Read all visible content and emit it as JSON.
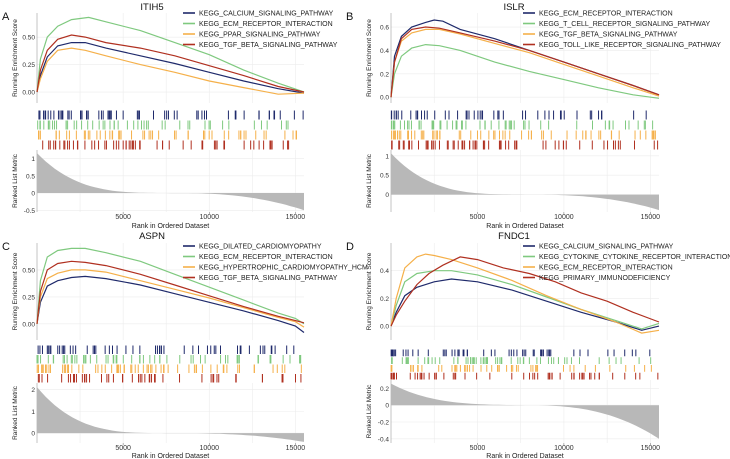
{
  "figure": {
    "description_panels": [
      "A",
      "B",
      "C",
      "D"
    ],
    "series_colors": [
      "#1f2a6b",
      "#7fc97f",
      "#f5b04a",
      "#b03020"
    ]
  },
  "chart_data": [
    {
      "type": "line",
      "panel_letter": "A",
      "title": "ITIH5",
      "xlabel": "Rank in Ordered Dataset",
      "ylabel_top": "Running Enrichment Score",
      "ylabel_bottom": "Ranked List Metric",
      "xlim": [
        0,
        15500
      ],
      "ylim_top": [
        -0.1,
        0.72
      ],
      "ylim_bottom": [
        -0.55,
        1.25
      ],
      "x_ticks": [
        5000,
        10000,
        15000
      ],
      "y_ticks_top": [
        0.0,
        0.25,
        0.5
      ],
      "y_ticks_bottom": [
        -0.5,
        0.0,
        0.5,
        1.0
      ],
      "series": [
        {
          "name": "KEGG_CALCIUM_SIGNALING_PATHWAY",
          "color": "#1f2a6b",
          "x": [
            0,
            200,
            600,
            1200,
            2000,
            2800,
            4000,
            6000,
            8000,
            10000,
            12000,
            14000,
            15500
          ],
          "y": [
            0.0,
            0.15,
            0.32,
            0.42,
            0.45,
            0.45,
            0.4,
            0.33,
            0.26,
            0.18,
            0.1,
            0.03,
            -0.01
          ]
        },
        {
          "name": "KEGG_ECM_RECEPTOR_INTERACTION",
          "color": "#7fc97f",
          "x": [
            0,
            200,
            600,
            1200,
            2000,
            2500,
            3000,
            4000,
            6000,
            8000,
            10000,
            12000,
            14000,
            15500
          ],
          "y": [
            0.0,
            0.3,
            0.5,
            0.6,
            0.66,
            0.67,
            0.68,
            0.64,
            0.56,
            0.45,
            0.34,
            0.2,
            0.08,
            0.0
          ]
        },
        {
          "name": "KEGG_PPAR_SIGNALING_PATHWAY",
          "color": "#f5b04a",
          "x": [
            0,
            200,
            600,
            1200,
            2000,
            2800,
            4000,
            6000,
            8000,
            10000,
            12000,
            14000,
            15500
          ],
          "y": [
            0.0,
            0.12,
            0.28,
            0.38,
            0.4,
            0.38,
            0.33,
            0.25,
            0.18,
            0.1,
            0.04,
            -0.02,
            -0.01
          ]
        },
        {
          "name": "KEGG_TGF_BETA_SIGNALING_PATHWAY",
          "color": "#b03020",
          "x": [
            0,
            200,
            600,
            1200,
            2000,
            2800,
            4000,
            6000,
            8000,
            10000,
            12000,
            14000,
            15500
          ],
          "y": [
            0.0,
            0.2,
            0.38,
            0.48,
            0.52,
            0.5,
            0.45,
            0.4,
            0.33,
            0.24,
            0.15,
            0.05,
            0.0
          ]
        }
      ],
      "ranked_metric": {
        "start": 1.2,
        "end": -0.5
      }
    },
    {
      "type": "line",
      "panel_letter": "B",
      "title": "ISLR",
      "xlabel": "Rank in Ordered Dataset",
      "ylabel_top": "Running Enrichment Score",
      "ylabel_bottom": "Ranked List Metric",
      "xlim": [
        0,
        15500
      ],
      "ylim_top": [
        -0.05,
        0.72
      ],
      "ylim_bottom": [
        -0.45,
        1.15
      ],
      "x_ticks": [
        5000,
        10000,
        15000
      ],
      "y_ticks_top": [
        0.0,
        0.2,
        0.4,
        0.6
      ],
      "y_ticks_bottom": [
        0.0,
        0.5,
        1.0
      ],
      "series": [
        {
          "name": "KEGG_ECM_RECEPTOR_INTERACTION",
          "color": "#1f2a6b",
          "x": [
            0,
            200,
            600,
            1200,
            2000,
            2500,
            3000,
            4000,
            6000,
            8000,
            10000,
            12000,
            14000,
            15500
          ],
          "y": [
            0.0,
            0.35,
            0.52,
            0.6,
            0.64,
            0.66,
            0.65,
            0.58,
            0.5,
            0.4,
            0.3,
            0.2,
            0.1,
            0.02
          ]
        },
        {
          "name": "KEGG_T_CELL_RECEPTOR_SIGNALING_PATHWAY",
          "color": "#7fc97f",
          "x": [
            0,
            200,
            600,
            1200,
            2000,
            2800,
            4000,
            6000,
            8000,
            10000,
            12000,
            14000,
            15500
          ],
          "y": [
            0.0,
            0.2,
            0.35,
            0.42,
            0.45,
            0.44,
            0.4,
            0.3,
            0.22,
            0.15,
            0.08,
            0.02,
            -0.01
          ]
        },
        {
          "name": "KEGG_TGF_BETA_SIGNALING_PATHWAY",
          "color": "#f5b04a",
          "x": [
            0,
            200,
            600,
            1200,
            2000,
            2800,
            4000,
            6000,
            8000,
            10000,
            12000,
            14000,
            15500
          ],
          "y": [
            0.0,
            0.3,
            0.48,
            0.55,
            0.58,
            0.58,
            0.54,
            0.46,
            0.38,
            0.28,
            0.18,
            0.08,
            0.01
          ]
        },
        {
          "name": "KEGG_TOLL_LIKE_RECEPTOR_SIGNALING_PATHWAY",
          "color": "#b03020",
          "x": [
            0,
            200,
            600,
            1200,
            2000,
            2800,
            4000,
            6000,
            8000,
            10000,
            12000,
            14000,
            15500
          ],
          "y": [
            0.0,
            0.3,
            0.5,
            0.58,
            0.6,
            0.59,
            0.55,
            0.48,
            0.4,
            0.3,
            0.2,
            0.1,
            0.02
          ]
        }
      ],
      "ranked_metric": {
        "start": 1.1,
        "end": -0.4
      }
    },
    {
      "type": "line",
      "panel_letter": "C",
      "title": "ASPN",
      "xlabel": "Rank in Ordered Dataset",
      "ylabel_top": "Running Enrichment Score",
      "ylabel_bottom": "Ranked List Metric",
      "xlim": [
        0,
        15500
      ],
      "ylim_top": [
        -0.15,
        0.75
      ],
      "ylim_bottom": [
        -0.45,
        2.3
      ],
      "x_ticks": [
        5000,
        10000,
        15000
      ],
      "y_ticks_top": [
        0.0,
        0.25,
        0.5
      ],
      "y_ticks_bottom": [
        0,
        1,
        2
      ],
      "series": [
        {
          "name": "KEGG_DILATED_CARDIOMYOPATHY",
          "color": "#1f2a6b",
          "x": [
            0,
            200,
            600,
            1200,
            2000,
            2800,
            4000,
            6000,
            8000,
            10000,
            12000,
            14000,
            15000,
            15500
          ],
          "y": [
            0.0,
            0.2,
            0.35,
            0.4,
            0.43,
            0.44,
            0.42,
            0.36,
            0.28,
            0.2,
            0.12,
            0.03,
            -0.02,
            -0.08
          ]
        },
        {
          "name": "KEGG_ECM_RECEPTOR_INTERACTION",
          "color": "#7fc97f",
          "x": [
            0,
            200,
            600,
            1200,
            2000,
            2800,
            4000,
            6000,
            8000,
            10000,
            12000,
            14000,
            15000,
            15500
          ],
          "y": [
            0.0,
            0.4,
            0.62,
            0.68,
            0.7,
            0.7,
            0.66,
            0.58,
            0.46,
            0.34,
            0.22,
            0.1,
            0.05,
            0.0
          ]
        },
        {
          "name": "KEGG_HYPERTROPHIC_CARDIOMYOPATHY_HCM",
          "color": "#f5b04a",
          "x": [
            0,
            200,
            600,
            1200,
            2000,
            2800,
            4000,
            6000,
            8000,
            10000,
            12000,
            14000,
            15000,
            15500
          ],
          "y": [
            0.0,
            0.25,
            0.42,
            0.47,
            0.5,
            0.5,
            0.48,
            0.4,
            0.32,
            0.24,
            0.15,
            0.06,
            0.02,
            -0.03
          ]
        },
        {
          "name": "KEGG_TGF_BETA_SIGNALING_PATHWAY",
          "color": "#b03020",
          "x": [
            0,
            200,
            600,
            1200,
            2000,
            2800,
            4000,
            6000,
            8000,
            10000,
            12000,
            14000,
            15000,
            15500
          ],
          "y": [
            0.0,
            0.3,
            0.5,
            0.56,
            0.58,
            0.57,
            0.54,
            0.46,
            0.36,
            0.26,
            0.16,
            0.07,
            0.03,
            0.01
          ]
        }
      ],
      "ranked_metric": {
        "start": 2.2,
        "end": -0.4
      }
    },
    {
      "type": "line",
      "panel_letter": "D",
      "title": "FNDC1",
      "xlabel": "Rank in Ordered Dataset",
      "ylabel_top": "Running Enrichment Score",
      "ylabel_bottom": "Ranked List Metric",
      "xlim": [
        0,
        15500
      ],
      "ylim_top": [
        -0.1,
        0.6
      ],
      "ylim_bottom": [
        -0.45,
        0.3
      ],
      "x_ticks": [
        5000,
        10000,
        15000
      ],
      "y_ticks_top": [
        0.0,
        0.2,
        0.4
      ],
      "y_ticks_bottom": [
        -0.4,
        -0.2,
        0.0,
        0.2
      ],
      "series": [
        {
          "name": "KEGG_CALCIUM_SIGNALING_PATHWAY",
          "color": "#1f2a6b",
          "x": [
            0,
            300,
            800,
            1500,
            2500,
            3500,
            5000,
            7000,
            9000,
            11000,
            13000,
            14500,
            15500
          ],
          "y": [
            0.0,
            0.1,
            0.22,
            0.28,
            0.32,
            0.34,
            0.32,
            0.26,
            0.18,
            0.1,
            0.03,
            -0.03,
            0.0
          ]
        },
        {
          "name": "KEGG_CYTOKINE_CYTOKINE_RECEPTOR_INTERACTION",
          "color": "#7fc97f",
          "x": [
            0,
            300,
            800,
            1500,
            2500,
            3500,
            5000,
            7000,
            9000,
            11000,
            13000,
            14500,
            15500
          ],
          "y": [
            0.0,
            0.15,
            0.32,
            0.38,
            0.4,
            0.4,
            0.37,
            0.3,
            0.21,
            0.12,
            0.04,
            -0.02,
            0.02
          ]
        },
        {
          "name": "KEGG_ECM_RECEPTOR_INTERACTION",
          "color": "#f5b04a",
          "x": [
            0,
            300,
            800,
            1500,
            2000,
            2500,
            3500,
            5000,
            7000,
            9000,
            11000,
            13000,
            14500,
            15500
          ],
          "y": [
            0.0,
            0.2,
            0.42,
            0.5,
            0.52,
            0.51,
            0.48,
            0.42,
            0.33,
            0.22,
            0.12,
            0.03,
            -0.05,
            -0.03
          ]
        },
        {
          "name": "KEGG_PRIMARY_IMMUNODEFICIENCY",
          "color": "#b03020",
          "x": [
            0,
            300,
            800,
            1500,
            2200,
            3000,
            4000,
            5000,
            6500,
            8000,
            9500,
            11000,
            12500,
            14000,
            15500
          ],
          "y": [
            0.0,
            0.08,
            0.18,
            0.3,
            0.38,
            0.44,
            0.5,
            0.48,
            0.42,
            0.38,
            0.32,
            0.24,
            0.18,
            0.1,
            0.03
          ]
        }
      ],
      "ranked_metric": {
        "start": 0.25,
        "end": -0.4
      }
    }
  ]
}
